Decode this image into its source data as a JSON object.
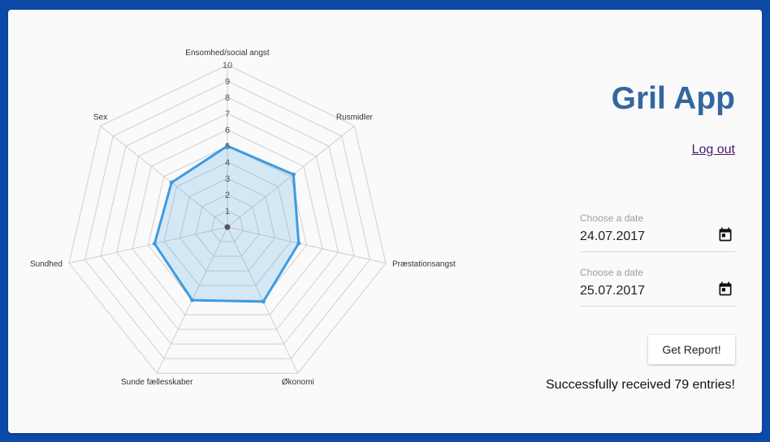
{
  "app": {
    "title": "Gril App",
    "logout_label": "Log out"
  },
  "date_range": {
    "start": {
      "label": "Choose a date",
      "value": "24.07.2017",
      "icon": "calendar-icon"
    },
    "end": {
      "label": "Choose a date",
      "value": "25.07.2017",
      "icon": "calendar-icon"
    }
  },
  "report_button_label": "Get Report!",
  "status_message": "Successfully received 79 entries!",
  "chart_data": {
    "type": "radar",
    "title": "",
    "categories": [
      "Ensomhed/social angst",
      "Rusmidler",
      "Præstationsangst",
      "Økonomi",
      "Sunde fællesskaber",
      "Sundhed",
      "Sex"
    ],
    "series": [
      {
        "values": [
          5,
          5.2,
          4.5,
          5.1,
          5,
          4.6,
          4.4
        ]
      }
    ],
    "scale": {
      "min": 0,
      "max": 10,
      "step": 1
    },
    "tick_labels": [
      "1",
      "2",
      "3",
      "4",
      "5",
      "6",
      "7",
      "8",
      "9",
      "10"
    ],
    "grid": true,
    "colors": {
      "line": "#3d9be0",
      "fill": "rgba(61,155,224,0.2)",
      "grid": "#cfcfcf"
    }
  },
  "colors": {
    "background": "#0d4aa8",
    "card": "#fafafa",
    "title": "#33679f",
    "link": "#4a1a6e"
  }
}
